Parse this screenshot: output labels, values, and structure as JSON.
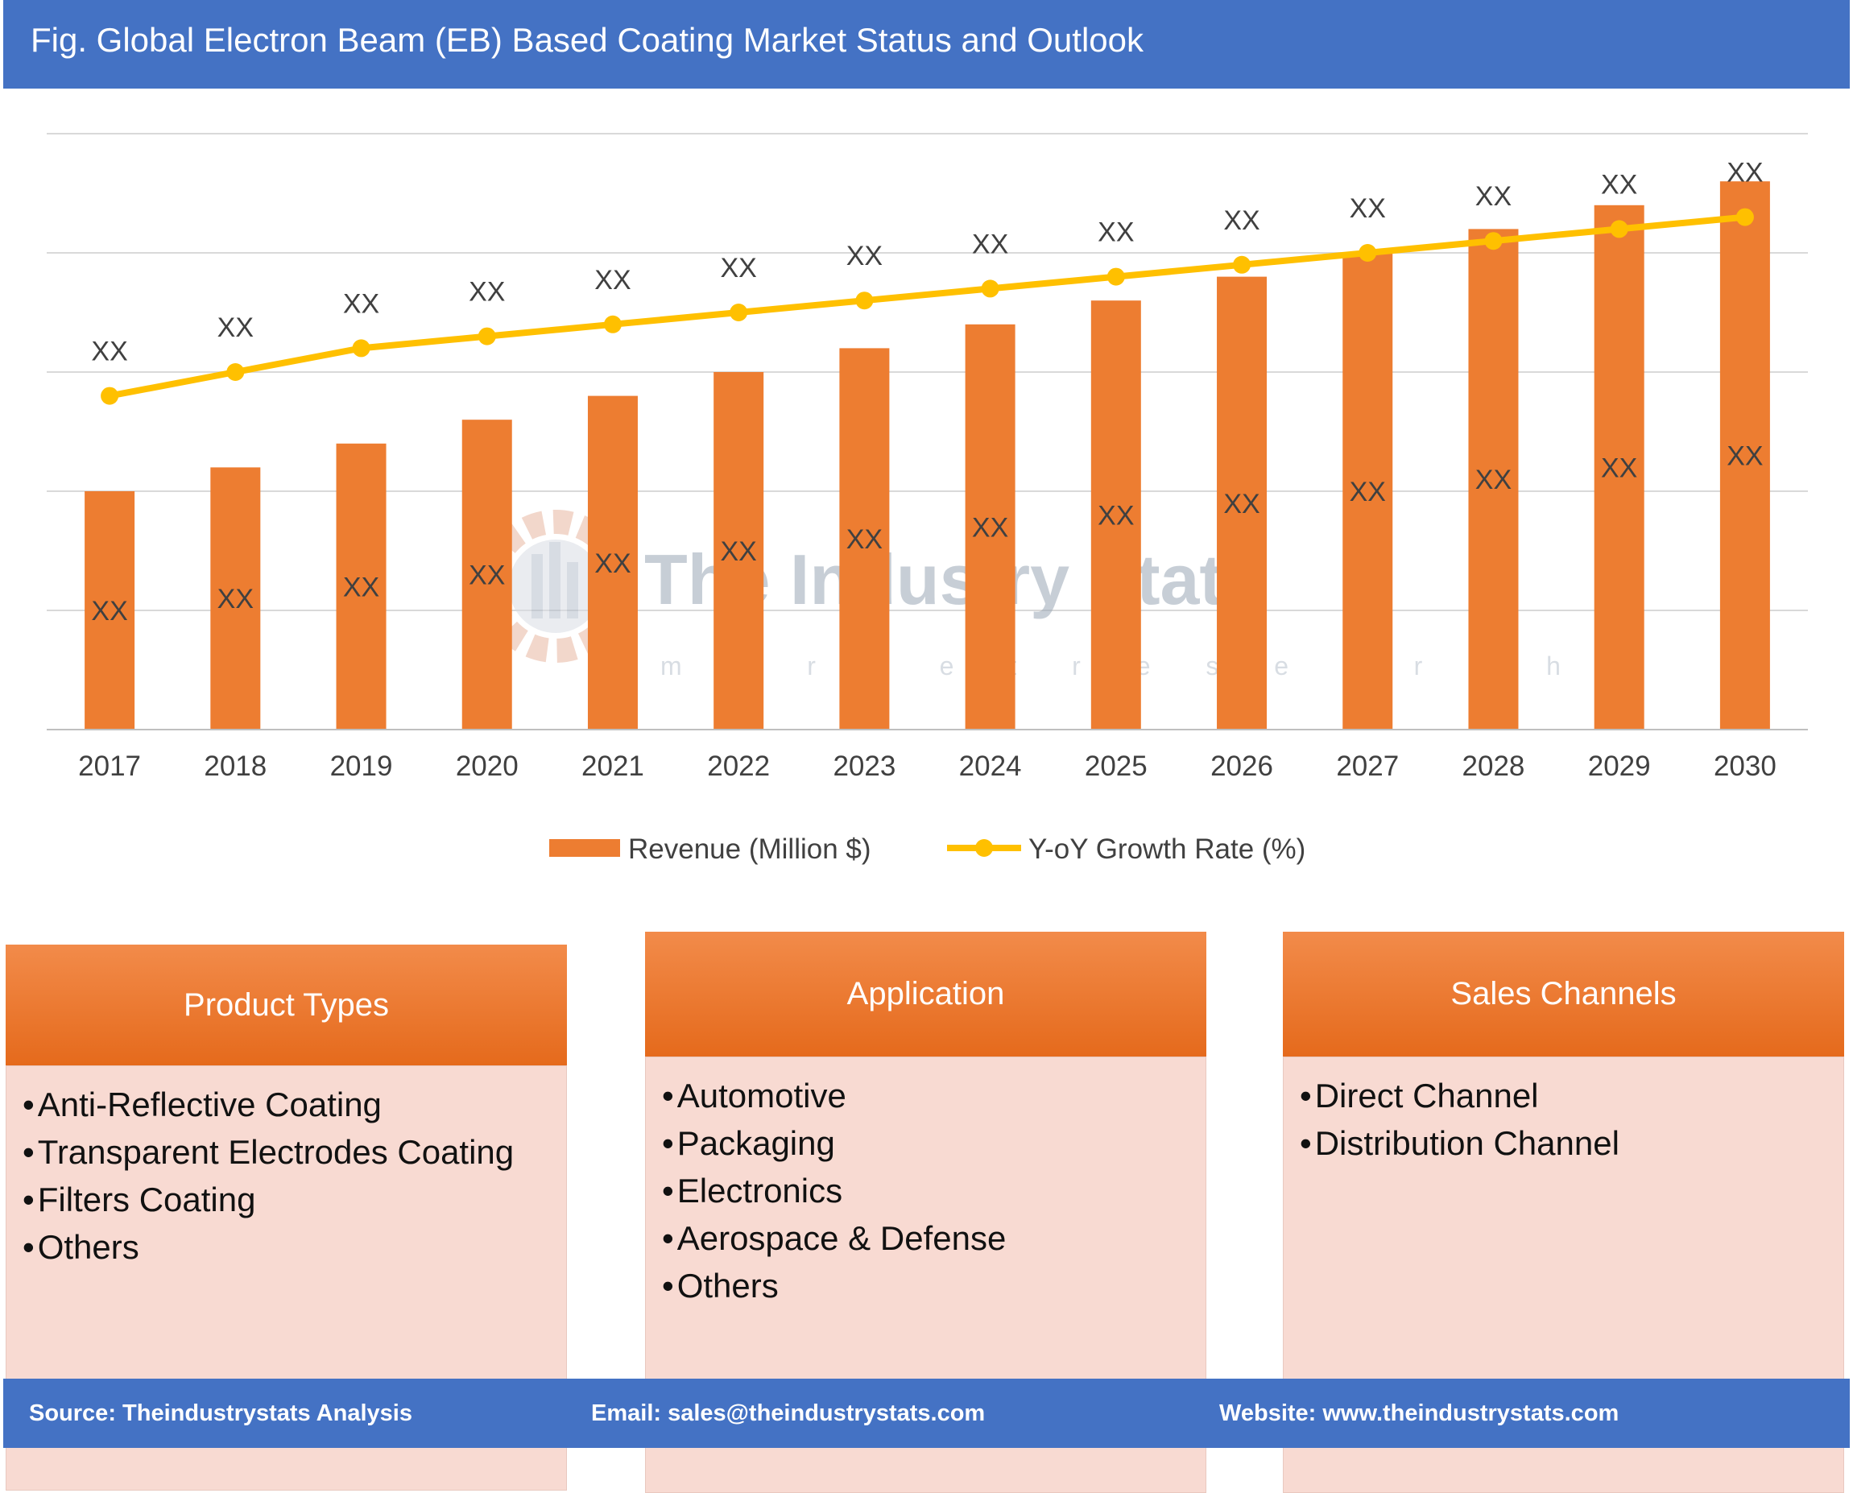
{
  "header": {
    "title": "Fig. Global Electron Beam (EB) Based Coating Market Status and Outlook"
  },
  "chart_data": {
    "type": "bar",
    "title": "",
    "categories": [
      "2017",
      "2018",
      "2019",
      "2020",
      "2021",
      "2022",
      "2023",
      "2024",
      "2025",
      "2026",
      "2027",
      "2028",
      "2029",
      "2030"
    ],
    "series": [
      {
        "name": "Revenue (Million $)",
        "kind": "bar",
        "color": "#ed7d31",
        "values": [
          2.0,
          2.2,
          2.4,
          2.6,
          2.8,
          3.0,
          3.2,
          3.4,
          3.6,
          3.8,
          4.0,
          4.2,
          4.4,
          4.6
        ],
        "labels": [
          "XX",
          "XX",
          "XX",
          "XX",
          "XX",
          "XX",
          "XX",
          "XX",
          "XX",
          "XX",
          "XX",
          "XX",
          "XX",
          "XX"
        ]
      },
      {
        "name": "Y-oY Growth Rate (%)",
        "kind": "line",
        "color": "#ffc000",
        "values": [
          2.8,
          3.0,
          3.2,
          3.3,
          3.4,
          3.5,
          3.6,
          3.7,
          3.8,
          3.9,
          4.0,
          4.1,
          4.2,
          4.3
        ],
        "labels": [
          "XX",
          "XX",
          "XX",
          "XX",
          "XX",
          "XX",
          "XX",
          "XX",
          "XX",
          "XX",
          "XX",
          "XX",
          "XX",
          "XX"
        ]
      }
    ],
    "ylim": [
      0,
      5
    ],
    "grid": true,
    "y_tick_labels_shown": false,
    "legend_position": "bottom"
  },
  "watermark": {
    "name": "The Industry Stats",
    "tagline": "m a r k e t   r e s e a r c h"
  },
  "boxes": [
    {
      "title": "Product Types",
      "items": [
        "Anti-Reflective Coating",
        "Transparent Electrodes Coating",
        "Filters Coating",
        "Others"
      ]
    },
    {
      "title": "Application",
      "items": [
        "Automotive",
        "Packaging",
        "Electronics",
        "Aerospace & Defense",
        "Others"
      ]
    },
    {
      "title": "Sales Channels",
      "items": [
        "Direct Channel",
        "Distribution Channel"
      ]
    }
  ],
  "footer": {
    "source": "Source: Theindustrystats Analysis",
    "email": "Email: sales@theindustrystats.com",
    "website": "Website: www.theindustrystats.com"
  }
}
